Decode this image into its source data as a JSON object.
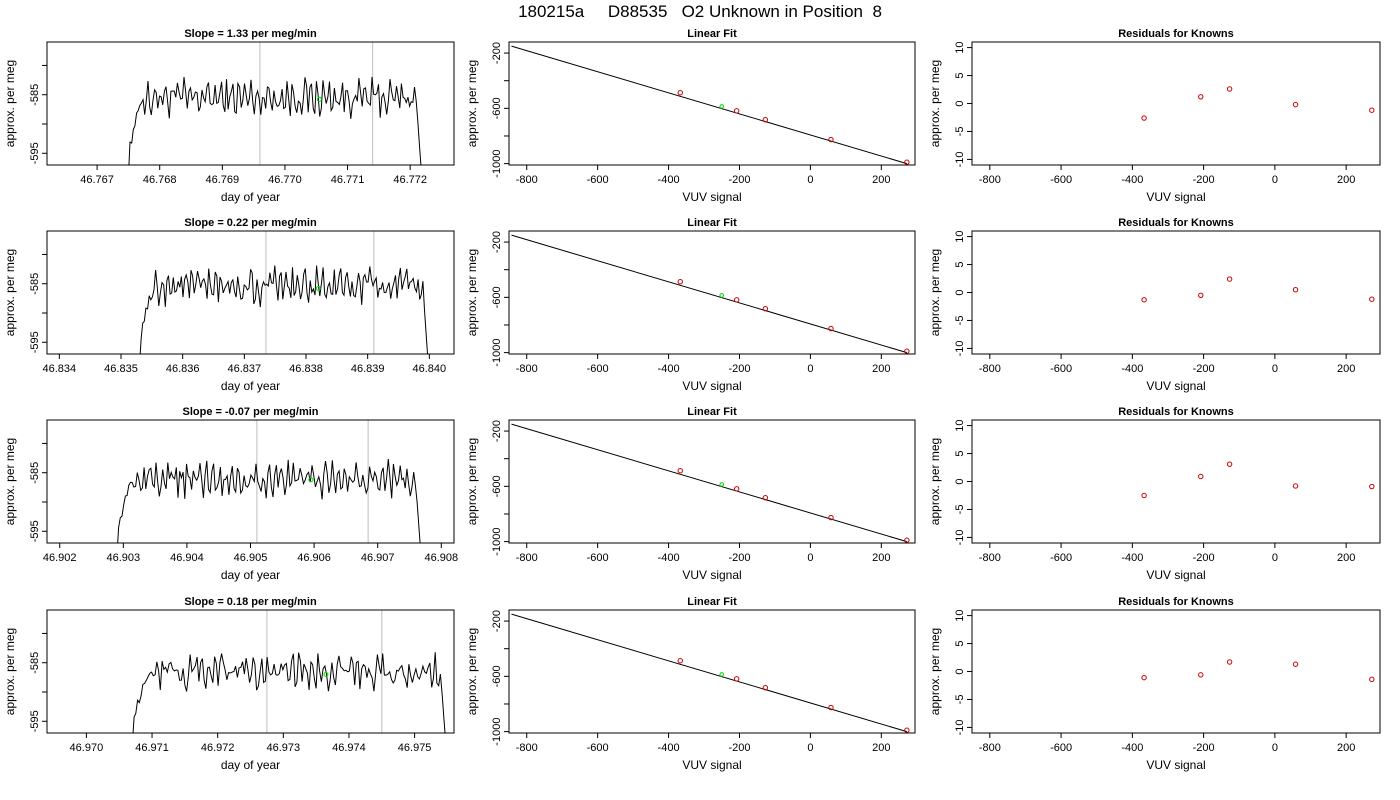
{
  "title": "180215a     D88535   O2 Unknown in Position  8",
  "chart_data": [
    {
      "type": "line",
      "title": "Slope =  1.33  per meg/min",
      "xlabel": "day of year",
      "ylabel": "approx. per meg",
      "xlim": [
        46.7662,
        46.7727
      ],
      "ylim": [
        -597,
        -576
      ],
      "xticks": [
        "46.767",
        "46.768",
        "46.769",
        "46.770",
        "46.771",
        "46.772"
      ],
      "yticks": [
        "-585",
        "-595"
      ],
      "ytick_values": [
        -585,
        -595
      ],
      "vlines": [
        46.7696,
        46.7714
      ],
      "highlight_point": [
        46.77055,
        -585.8
      ],
      "trace_start": 46.7675,
      "trace_end": 46.7722,
      "trace_mean": -585.5
    },
    {
      "type": "line",
      "title": "Linear Fit",
      "xlabel": "VUV signal",
      "ylabel": "approx. per meg",
      "xlim": [
        -850,
        295
      ],
      "ylim": [
        -1010,
        -120
      ],
      "xticks": [
        "-800",
        "-600",
        "-400",
        "-200",
        "0",
        "200"
      ],
      "xtick_values": [
        -800,
        -600,
        -400,
        -200,
        0,
        200
      ],
      "yticks": [
        "-200",
        "-600",
        "-1000"
      ],
      "ytick_values": [
        -200,
        -600,
        -1000
      ],
      "fit_line": [
        [
          -843,
          -150
        ],
        [
          272,
          -1000
        ]
      ],
      "known_points": [
        [
          -367,
          -487
        ],
        [
          -208,
          -618
        ],
        [
          -127,
          -682
        ],
        [
          58,
          -826
        ],
        [
          272,
          -990
        ]
      ],
      "unknown_point": [
        -250,
        -586
      ]
    },
    {
      "type": "scatter",
      "title": "Residuals for Knowns",
      "xlabel": "VUV signal",
      "ylabel": "approx. per meg",
      "xlim": [
        -850,
        295
      ],
      "ylim": [
        -11,
        11
      ],
      "xticks": [
        "-800",
        "-600",
        "-400",
        "-200",
        "0",
        "200"
      ],
      "xtick_values": [
        -800,
        -600,
        -400,
        -200,
        0,
        200
      ],
      "yticks": [
        "-10",
        "-5",
        "0",
        "5",
        "10"
      ],
      "ytick_values": [
        -10,
        -5,
        0,
        5,
        10
      ],
      "x": [
        -367,
        -208,
        -127,
        58,
        272
      ],
      "y": [
        -2.6,
        1.2,
        2.6,
        -0.2,
        -1.2
      ]
    },
    {
      "type": "line",
      "title": "Slope =  0.22  per meg/min",
      "xlabel": "day of year",
      "ylabel": "approx. per meg",
      "xlim": [
        46.8338,
        46.8404
      ],
      "ylim": [
        -597,
        -576
      ],
      "xticks": [
        "46.834",
        "46.835",
        "46.836",
        "46.837",
        "46.838",
        "46.839",
        "46.840"
      ],
      "yticks": [
        "-585",
        "-595"
      ],
      "ytick_values": [
        -585,
        -595
      ],
      "vlines": [
        46.83735,
        46.8391
      ],
      "highlight_point": [
        46.8382,
        -585.8
      ],
      "trace_start": 46.8353,
      "trace_end": 46.84,
      "trace_mean": -585.5
    },
    {
      "type": "line",
      "title": "Linear Fit",
      "xlabel": "VUV signal",
      "ylabel": "approx. per meg",
      "xlim": [
        -850,
        295
      ],
      "ylim": [
        -1010,
        -120
      ],
      "xticks": [
        "-800",
        "-600",
        "-400",
        "-200",
        "0",
        "200"
      ],
      "xtick_values": [
        -800,
        -600,
        -400,
        -200,
        0,
        200
      ],
      "yticks": [
        "-200",
        "-600",
        "-1000"
      ],
      "ytick_values": [
        -200,
        -600,
        -1000
      ],
      "fit_line": [
        [
          -843,
          -150
        ],
        [
          272,
          -1000
        ]
      ],
      "known_points": [
        [
          -367,
          -487
        ],
        [
          -208,
          -618
        ],
        [
          -127,
          -682
        ],
        [
          58,
          -826
        ],
        [
          272,
          -990
        ]
      ],
      "unknown_point": [
        -250,
        -586
      ]
    },
    {
      "type": "scatter",
      "title": "Residuals for Knowns",
      "xlabel": "VUV signal",
      "ylabel": "approx. per meg",
      "xlim": [
        -850,
        295
      ],
      "ylim": [
        -11,
        11
      ],
      "xticks": [
        "-800",
        "-600",
        "-400",
        "-200",
        "0",
        "200"
      ],
      "xtick_values": [
        -800,
        -600,
        -400,
        -200,
        0,
        200
      ],
      "yticks": [
        "-10",
        "-5",
        "0",
        "5",
        "10"
      ],
      "ytick_values": [
        -10,
        -5,
        0,
        5,
        10
      ],
      "x": [
        -367,
        -208,
        -127,
        58,
        272
      ],
      "y": [
        -1.3,
        -0.5,
        2.4,
        0.5,
        -1.2
      ]
    },
    {
      "type": "line",
      "title": "Slope =  -0.07  per meg/min",
      "xlabel": "day of year",
      "ylabel": "approx. per meg",
      "xlim": [
        46.9018,
        46.9082
      ],
      "ylim": [
        -597,
        -576
      ],
      "xticks": [
        "46.902",
        "46.903",
        "46.904",
        "46.905",
        "46.906",
        "46.907",
        "46.908"
      ],
      "yticks": [
        "-585",
        "-595"
      ],
      "ytick_values": [
        -585,
        -595
      ],
      "vlines": [
        46.9051,
        46.90685
      ],
      "highlight_point": [
        46.90595,
        -586.2
      ],
      "trace_start": 46.9029,
      "trace_end": 46.9077,
      "trace_mean": -586.0
    },
    {
      "type": "line",
      "title": "Linear Fit",
      "xlabel": "VUV signal",
      "ylabel": "approx. per meg",
      "xlim": [
        -850,
        295
      ],
      "ylim": [
        -1010,
        -120
      ],
      "xticks": [
        "-800",
        "-600",
        "-400",
        "-200",
        "0",
        "200"
      ],
      "xtick_values": [
        -800,
        -600,
        -400,
        -200,
        0,
        200
      ],
      "yticks": [
        "-200",
        "-600",
        "-1000"
      ],
      "ytick_values": [
        -200,
        -600,
        -1000
      ],
      "fit_line": [
        [
          -843,
          -150
        ],
        [
          272,
          -1000
        ]
      ],
      "known_points": [
        [
          -367,
          -487
        ],
        [
          -208,
          -618
        ],
        [
          -127,
          -682
        ],
        [
          58,
          -826
        ],
        [
          272,
          -990
        ]
      ],
      "unknown_point": [
        -250,
        -586
      ]
    },
    {
      "type": "scatter",
      "title": "Residuals for Knowns",
      "xlabel": "VUV signal",
      "ylabel": "approx. per meg",
      "xlim": [
        -850,
        295
      ],
      "ylim": [
        -11,
        11
      ],
      "xticks": [
        "-800",
        "-600",
        "-400",
        "-200",
        "0",
        "200"
      ],
      "xtick_values": [
        -800,
        -600,
        -400,
        -200,
        0,
        200
      ],
      "yticks": [
        "-10",
        "-5",
        "0",
        "5",
        "10"
      ],
      "ytick_values": [
        -10,
        -5,
        0,
        5,
        10
      ],
      "x": [
        -367,
        -208,
        -127,
        58,
        272
      ],
      "y": [
        -2.5,
        0.9,
        3.1,
        -0.8,
        -0.9
      ]
    },
    {
      "type": "line",
      "title": "Slope =  0.18  per meg/min",
      "xlabel": "day of year",
      "ylabel": "approx. per meg",
      "xlim": [
        46.9694,
        46.9756
      ],
      "ylim": [
        -597,
        -576
      ],
      "xticks": [
        "46.970",
        "46.971",
        "46.972",
        "46.973",
        "46.974",
        "46.975"
      ],
      "yticks": [
        "-585",
        "-595"
      ],
      "ytick_values": [
        -585,
        -595
      ],
      "vlines": [
        46.97275,
        46.9745
      ],
      "highlight_point": [
        46.97365,
        -587.0
      ],
      "trace_start": 46.9707,
      "trace_end": 46.9755,
      "trace_mean": -586.5
    },
    {
      "type": "line",
      "title": "Linear Fit",
      "xlabel": "VUV signal",
      "ylabel": "approx. per meg",
      "xlim": [
        -850,
        295
      ],
      "ylim": [
        -1010,
        -120
      ],
      "xticks": [
        "-800",
        "-600",
        "-400",
        "-200",
        "0",
        "200"
      ],
      "xtick_values": [
        -800,
        -600,
        -400,
        -200,
        0,
        200
      ],
      "yticks": [
        "-200",
        "-600",
        "-1000"
      ],
      "ytick_values": [
        -200,
        -600,
        -1000
      ],
      "fit_line": [
        [
          -843,
          -150
        ],
        [
          272,
          -1000
        ]
      ],
      "known_points": [
        [
          -367,
          -487
        ],
        [
          -208,
          -618
        ],
        [
          -127,
          -682
        ],
        [
          58,
          -826
        ],
        [
          272,
          -990
        ]
      ],
      "unknown_point": [
        -250,
        -586
      ]
    },
    {
      "type": "scatter",
      "title": "Residuals for Knowns",
      "xlabel": "VUV signal",
      "ylabel": "approx. per meg",
      "xlim": [
        -850,
        295
      ],
      "ylim": [
        -11,
        11
      ],
      "xticks": [
        "-800",
        "-600",
        "-400",
        "-200",
        "0",
        "200"
      ],
      "xtick_values": [
        -800,
        -600,
        -400,
        -200,
        0,
        200
      ],
      "yticks": [
        "-10",
        "-5",
        "0",
        "5",
        "10"
      ],
      "ytick_values": [
        -10,
        -5,
        0,
        5,
        10
      ],
      "x": [
        -367,
        -208,
        -127,
        58,
        272
      ],
      "y": [
        -1.1,
        -0.6,
        1.7,
        1.3,
        -1.4
      ]
    }
  ]
}
